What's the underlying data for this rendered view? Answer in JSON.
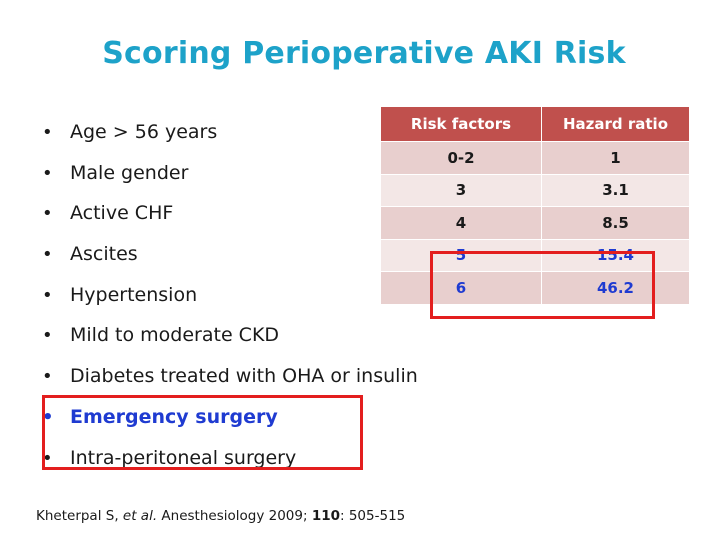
{
  "slide": {
    "title": "Scoring Perioperative AKI Risk",
    "bullet_symbol": "•",
    "bullets": [
      "Age > 56 years",
      "Male gender",
      "Active CHF",
      "Ascites",
      "Hypertension",
      "Mild to moderate CKD",
      "Diabetes treated with OHA or insulin",
      "Emergency surgery",
      "Intra-peritoneal surgery"
    ],
    "highlight_color": "#e31e1e",
    "highlight_text_color": "#1f3bd1",
    "title_color": "#1da2c9"
  },
  "table": {
    "headers": [
      "Risk factors",
      "Hazard ratio"
    ],
    "header_color": "#c0504d",
    "rows": [
      [
        "0-2",
        "1"
      ],
      [
        "3",
        "3.1"
      ],
      [
        "4",
        "8.5"
      ],
      [
        "5",
        "15.4"
      ],
      [
        "6",
        "46.2"
      ]
    ]
  },
  "citation": {
    "authors": "Kheterpal S, ",
    "etal": "et al.",
    "journal": " Anesthesiology 2009; ",
    "volume": "110",
    "pages": ": 505-515"
  }
}
